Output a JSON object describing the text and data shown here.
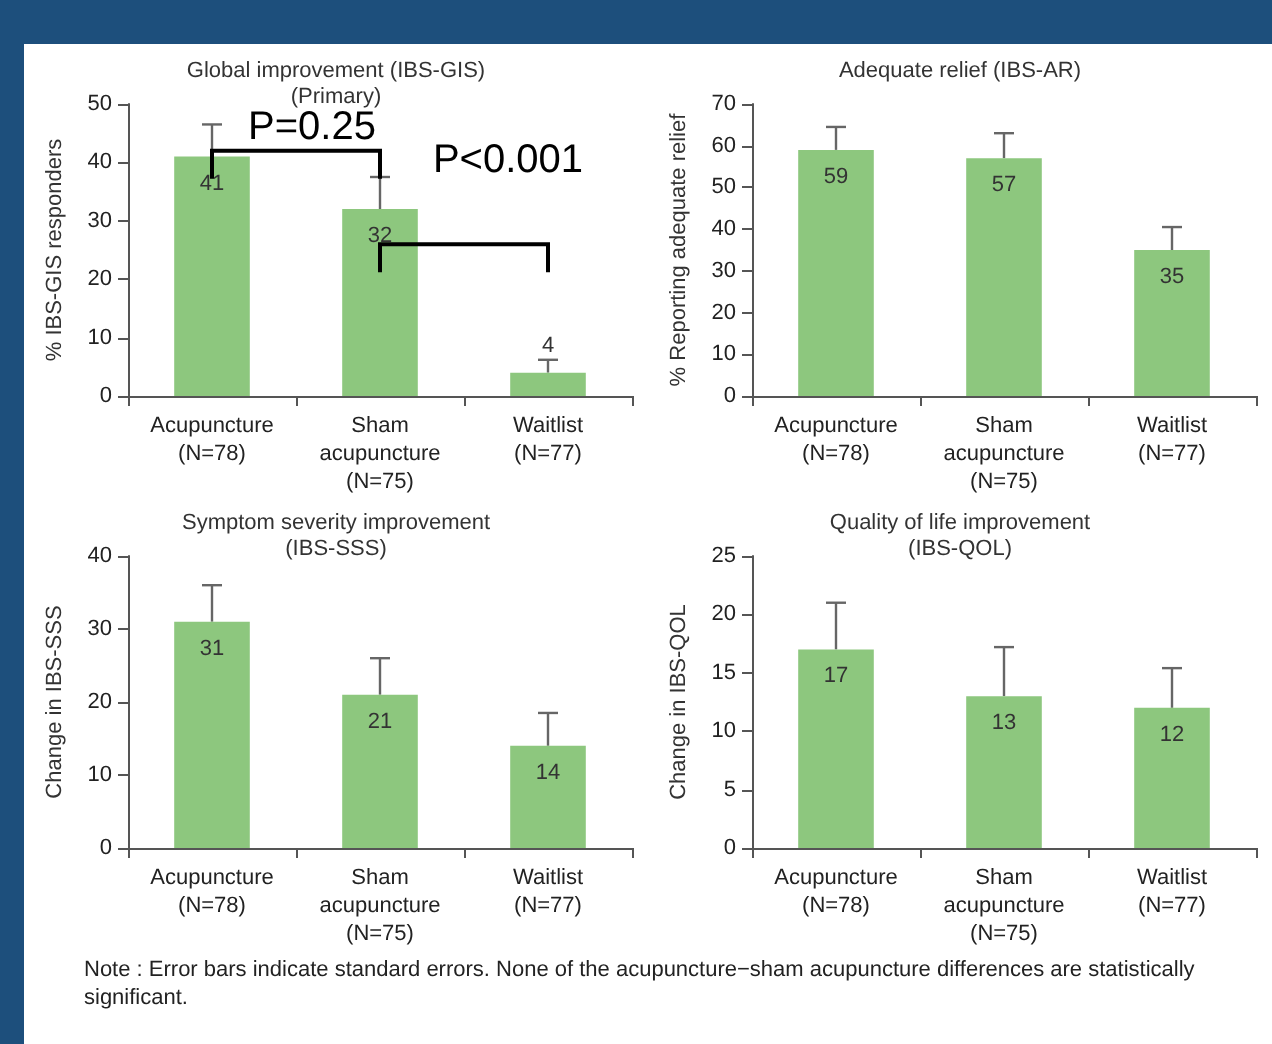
{
  "chart_data": [
    {
      "type": "bar",
      "title": "Global improvement (IBS-GIS)\n(Primary)",
      "ylabel": "% IBS-GIS responders",
      "categories": [
        "Acupuncture\n(N=78)",
        "Sham\nacupuncture\n(N=75)",
        "Waitlist\n(N=77)"
      ],
      "values": [
        41,
        32,
        4
      ],
      "errors": [
        [
          41,
          46.5
        ],
        [
          32,
          37.5
        ],
        [
          4,
          6.2
        ]
      ],
      "color": "#8dc77e",
      "ylim": [
        0,
        50
      ],
      "yticks": [
        0,
        10,
        20,
        30,
        40,
        50
      ],
      "data_labels": true,
      "annotations": [
        "P=0.25",
        "P<0.001"
      ]
    },
    {
      "type": "bar",
      "title": "Adequate relief (IBS-AR)",
      "ylabel": "% Reporting adequate relief",
      "categories": [
        "Acupuncture\n(N=78)",
        "Sham\nacupuncture\n(N=75)",
        "Waitlist\n(N=77)"
      ],
      "values": [
        59,
        57,
        35
      ],
      "errors": [
        [
          59,
          64.5
        ],
        [
          57,
          63
        ],
        [
          35,
          40.5
        ]
      ],
      "color": "#8dc77e",
      "ylim": [
        0,
        70
      ],
      "yticks": [
        0,
        10,
        20,
        30,
        40,
        50,
        60,
        70
      ],
      "data_labels": true
    },
    {
      "type": "bar",
      "title": "Symptom severity improvement\n(IBS-SSS)",
      "ylabel": "Change in IBS-SSS",
      "categories": [
        "Acupuncture\n(N=78)",
        "Sham\nacupuncture\n(N=75)",
        "Waitlist\n(N=77)"
      ],
      "values": [
        31,
        21,
        14
      ],
      "errors": [
        [
          31,
          36
        ],
        [
          21,
          26
        ],
        [
          14,
          18.5
        ]
      ],
      "color": "#8dc77e",
      "ylim": [
        0,
        40
      ],
      "yticks": [
        0,
        10,
        20,
        30,
        40
      ],
      "data_labels": true
    },
    {
      "type": "bar",
      "title": "Quality of life improvement\n(IBS-QOL)",
      "ylabel": "Change in IBS-QOL",
      "categories": [
        "Acupuncture\n(N=78)",
        "Sham\nacupuncture\n(N=75)",
        "Waitlist\n(N=77)"
      ],
      "values": [
        17,
        13,
        12
      ],
      "errors": [
        [
          17,
          21
        ],
        [
          13,
          17.2
        ],
        [
          12,
          15.4
        ]
      ],
      "color": "#8dc77e",
      "ylim": [
        0,
        25
      ],
      "yticks": [
        0,
        5,
        10,
        15,
        20,
        25
      ],
      "data_labels": true
    },
    {
      "type": "other",
      "annotations": [
        "Note : Error bars indicate standard errors. None of the acupuncture−sham acupuncture differences are statistically significant."
      ]
    }
  ]
}
